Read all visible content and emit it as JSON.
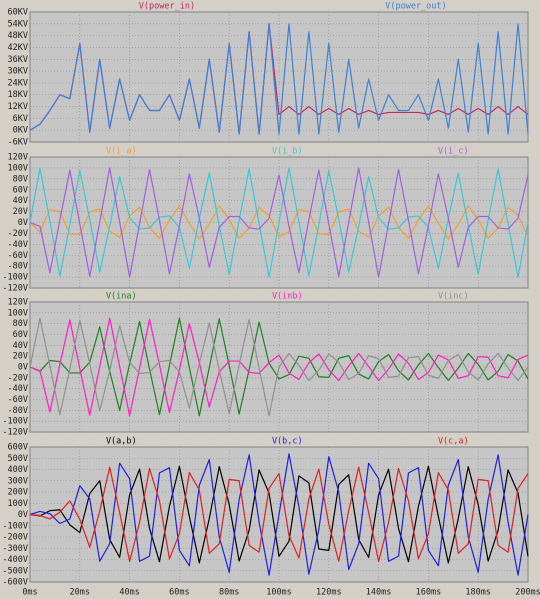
{
  "chart_data": [
    {
      "type": "line",
      "series": [
        {
          "name": "V(power_in)",
          "color": "#c02860",
          "values": [
            0,
            3,
            10,
            18,
            16,
            44,
            -1,
            36,
            1,
            26,
            5,
            18,
            10,
            10,
            18,
            5,
            26,
            1,
            36,
            -1,
            44,
            -2,
            50,
            -2,
            54,
            8,
            12,
            8,
            12,
            8,
            11,
            8,
            11,
            8,
            10,
            8,
            9,
            9,
            9,
            9,
            8,
            10,
            8,
            11,
            8,
            11,
            8,
            12,
            8,
            12,
            8
          ]
        },
        {
          "name": "V(power_out)",
          "color": "#3c82d8",
          "values": [
            0,
            3,
            10,
            18,
            16,
            44,
            -1,
            36,
            1,
            26,
            5,
            18,
            10,
            10,
            18,
            5,
            26,
            1,
            36,
            -1,
            44,
            -2,
            50,
            -2,
            54,
            -2,
            54,
            -2,
            50,
            -2,
            44,
            -1,
            36,
            1,
            26,
            5,
            18,
            10,
            10,
            18,
            5,
            26,
            1,
            36,
            -1,
            44,
            -2,
            50,
            -2,
            54,
            -2
          ]
        }
      ],
      "ylim": [
        -6,
        60
      ],
      "yticks": [
        {
          "value": 60,
          "label": "60KV"
        },
        {
          "value": 54,
          "label": "54KV"
        },
        {
          "value": 48,
          "label": "48KV"
        },
        {
          "value": 42,
          "label": "42KV"
        },
        {
          "value": 36,
          "label": "36KV"
        },
        {
          "value": 30,
          "label": "30KV"
        },
        {
          "value": 24,
          "label": "24KV"
        },
        {
          "value": 18,
          "label": "18KV"
        },
        {
          "value": 12,
          "label": "12KV"
        },
        {
          "value": 6,
          "label": "6KV"
        },
        {
          "value": 0,
          "label": "0KV"
        },
        {
          "value": -6,
          "label": "-6KV"
        }
      ],
      "grid": true
    },
    {
      "type": "line",
      "series": [
        {
          "name": "V(i_a)",
          "color": "#f0a030",
          "values": [
            0,
            -17,
            24,
            20,
            -21,
            -22,
            19,
            25,
            -16,
            -27,
            12,
            28,
            -9,
            -29,
            5,
            30,
            -1,
            -30,
            -3,
            30,
            6,
            -29,
            -10,
            28,
            13,
            -26,
            -17,
            24,
            20,
            -21,
            -22,
            19,
            25,
            -16,
            -27,
            12,
            28,
            -9,
            -29,
            5,
            30,
            -1,
            -30,
            -3,
            30,
            6,
            -29,
            -10,
            28,
            13,
            -26
          ]
        },
        {
          "name": "V(i_b)",
          "color": "#38c8d8",
          "values": [
            0,
            100,
            2,
            -98,
            -4,
            95,
            6,
            -91,
            -7,
            84,
            9,
            -12,
            -10,
            10,
            12,
            -9,
            -84,
            7,
            91,
            -6,
            -95,
            4,
            98,
            -2,
            -100,
            0,
            100,
            2,
            -98,
            -4,
            95,
            6,
            -91,
            -7,
            84,
            9,
            -12,
            -10,
            10,
            12,
            -9,
            -84,
            7,
            91,
            -6,
            -95,
            4,
            98,
            -2,
            -100,
            0
          ]
        },
        {
          "name": "V(i_c)",
          "color": "#a060e0",
          "values": [
            0,
            -7,
            -92,
            5,
            96,
            -3,
            -99,
            1,
            100,
            1,
            -100,
            -2,
            97,
            4,
            -94,
            -6,
            89,
            8,
            -82,
            -9,
            11,
            11,
            -10,
            -12,
            8,
            87,
            -7,
            -92,
            5,
            96,
            -3,
            -99,
            1,
            100,
            1,
            -100,
            -2,
            97,
            4,
            -94,
            -6,
            89,
            8,
            -82,
            -9,
            11,
            11,
            -10,
            -12,
            8,
            87
          ]
        }
      ],
      "ylim": [
        -120,
        120
      ],
      "yticks": [
        {
          "value": 120,
          "label": "120V"
        },
        {
          "value": 100,
          "label": "100V"
        },
        {
          "value": 80,
          "label": "80V"
        },
        {
          "value": 60,
          "label": "60V"
        },
        {
          "value": 40,
          "label": "40V"
        },
        {
          "value": 20,
          "label": "20V"
        },
        {
          "value": 0,
          "label": "0V"
        },
        {
          "value": -20,
          "label": "-20V"
        },
        {
          "value": -40,
          "label": "-40V"
        },
        {
          "value": -60,
          "label": "-60V"
        },
        {
          "value": -80,
          "label": "-80V"
        },
        {
          "value": -100,
          "label": "-100V"
        },
        {
          "value": -120,
          "label": "-120V"
        }
      ],
      "grid": true
    },
    {
      "type": "line",
      "series": [
        {
          "name": "V(ina)",
          "color": "#208020",
          "values": [
            0,
            -8,
            12,
            10,
            -11,
            -11,
            9,
            74,
            -8,
            -80,
            6,
            84,
            -4,
            -88,
            3,
            90,
            -1,
            -90,
            -1,
            89,
            3,
            -87,
            -5,
            83,
            7,
            -22,
            -14,
            20,
            16,
            -18,
            -19,
            16,
            21,
            -13,
            -22,
            10,
            23,
            -7,
            -24,
            4,
            25,
            -1,
            -25,
            -2,
            25,
            5,
            -24,
            -8,
            23,
            11,
            -22
          ]
        },
        {
          "name": "V(inb)",
          "color": "#ff20c0",
          "values": [
            0,
            -7,
            -83,
            5,
            87,
            -3,
            -89,
            1,
            90,
            1,
            -90,
            -2,
            88,
            4,
            -84,
            -6,
            80,
            8,
            -74,
            -9,
            11,
            11,
            -10,
            -12,
            8,
            22,
            -11,
            -23,
            8,
            24,
            -5,
            -25,
            2,
            25,
            1,
            -25,
            -4,
            24,
            7,
            -23,
            -10,
            22,
            13,
            -21,
            -16,
            19,
            18,
            -16,
            -20,
            14,
            22
          ]
        },
        {
          "name": "V(inc)",
          "color": "#909090",
          "values": [
            0,
            90,
            2,
            -88,
            -4,
            86,
            6,
            -81,
            -7,
            76,
            9,
            -12,
            -10,
            10,
            12,
            -9,
            -76,
            7,
            81,
            -6,
            -86,
            4,
            88,
            -2,
            -90,
            0,
            25,
            3,
            -25,
            -6,
            24,
            9,
            -23,
            -12,
            21,
            15,
            -19,
            -17,
            17,
            19,
            -15,
            -21,
            12,
            23,
            -9,
            -24,
            6,
            25,
            -2,
            -25,
            0
          ]
        }
      ],
      "ylim": [
        -120,
        120
      ],
      "yticks": [
        {
          "value": 120,
          "label": "120V"
        },
        {
          "value": 100,
          "label": "100V"
        },
        {
          "value": 80,
          "label": "80V"
        },
        {
          "value": 60,
          "label": "60V"
        },
        {
          "value": 40,
          "label": "40V"
        },
        {
          "value": 20,
          "label": "20V"
        },
        {
          "value": 0,
          "label": "0V"
        },
        {
          "value": -20,
          "label": "-20V"
        },
        {
          "value": -40,
          "label": "-40V"
        },
        {
          "value": -60,
          "label": "-60V"
        },
        {
          "value": -80,
          "label": "-80V"
        },
        {
          "value": -100,
          "label": "-100V"
        },
        {
          "value": -120,
          "label": "-120V"
        }
      ],
      "grid": true
    },
    {
      "type": "line",
      "x": [
        0,
        4,
        8,
        12,
        16,
        20,
        24,
        28,
        32,
        36,
        40,
        44,
        48,
        52,
        56,
        60,
        64,
        68,
        72,
        76,
        80,
        84,
        88,
        92,
        96,
        100,
        104,
        108,
        112,
        116,
        120,
        124,
        128,
        132,
        136,
        140,
        144,
        148,
        152,
        156,
        160,
        164,
        168,
        172,
        176,
        180,
        184,
        188,
        192,
        196,
        200
      ],
      "xlim": [
        0,
        200
      ],
      "xticks": [
        {
          "value": 0,
          "label": "0ms"
        },
        {
          "value": 20,
          "label": "20ms"
        },
        {
          "value": 40,
          "label": "40ms"
        },
        {
          "value": 60,
          "label": "60ms"
        },
        {
          "value": 80,
          "label": "80ms"
        },
        {
          "value": 100,
          "label": "100ms"
        },
        {
          "value": 120,
          "label": "120ms"
        },
        {
          "value": 140,
          "label": "140ms"
        },
        {
          "value": 160,
          "label": "160ms"
        },
        {
          "value": 180,
          "label": "180ms"
        },
        {
          "value": 200,
          "label": "200ms"
        }
      ],
      "series": [
        {
          "name": "V(a,b)",
          "color": "#000000",
          "values": [
            0,
            -12,
            34,
            42,
            -92,
            -160,
            187,
            300,
            -223,
            -381,
            175,
            403,
            -124,
            -419,
            72,
            428,
            -18,
            -430,
            -36,
            425,
            89,
            -414,
            -141,
            396,
            191,
            -372,
            -238,
            343,
            281,
            -307,
            -319,
            267,
            353,
            -223,
            -381,
            175,
            403,
            -124,
            -419,
            72,
            428,
            -18,
            -430,
            -36,
            425,
            89,
            -414,
            -141,
            396,
            191,
            -372
          ]
        },
        {
          "name": "V(b,c)",
          "color": "#2020e0",
          "values": [
            0,
            27,
            7,
            -80,
            -40,
            257,
            139,
            -415,
            -260,
            456,
            318,
            -416,
            -370,
            370,
            416,
            -318,
            -456,
            260,
            489,
            -199,
            -514,
            134,
            530,
            -68,
            -539,
            0,
            539,
            68,
            -530,
            -134,
            514,
            199,
            -489,
            -260,
            456,
            318,
            -416,
            -370,
            370,
            416,
            -318,
            -456,
            260,
            489,
            -199,
            -514,
            134,
            530,
            -68,
            -539,
            0
          ]
        },
        {
          "name": "V(c,a)",
          "color": "#e02020",
          "values": [
            0,
            -9,
            -39,
            21,
            121,
            -44,
            -291,
            30,
            420,
            18,
            -418,
            -70,
            409,
            121,
            -394,
            -171,
            372,
            218,
            -345,
            -261,
            312,
            300,
            -274,
            -335,
            232,
            364,
            -187,
            -387,
            138,
            404,
            -87,
            -415,
            35,
            420,
            18,
            -418,
            -70,
            409,
            121,
            -394,
            -171,
            372,
            218,
            -345,
            -261,
            312,
            300,
            -274,
            -335,
            232,
            364
          ]
        }
      ],
      "ylim": [
        -600,
        600
      ],
      "yticks": [
        {
          "value": 600,
          "label": "600V"
        },
        {
          "value": 500,
          "label": "500V"
        },
        {
          "value": 400,
          "label": "400V"
        },
        {
          "value": 300,
          "label": "300V"
        },
        {
          "value": 200,
          "label": "200V"
        },
        {
          "value": 100,
          "label": "100V"
        },
        {
          "value": 0,
          "label": "0V"
        },
        {
          "value": -100,
          "label": "-100V"
        },
        {
          "value": -200,
          "label": "-200V"
        },
        {
          "value": -300,
          "label": "-300V"
        },
        {
          "value": -400,
          "label": "-400V"
        },
        {
          "value": -500,
          "label": "-500V"
        },
        {
          "value": -600,
          "label": "-600V"
        }
      ],
      "grid": true
    }
  ]
}
